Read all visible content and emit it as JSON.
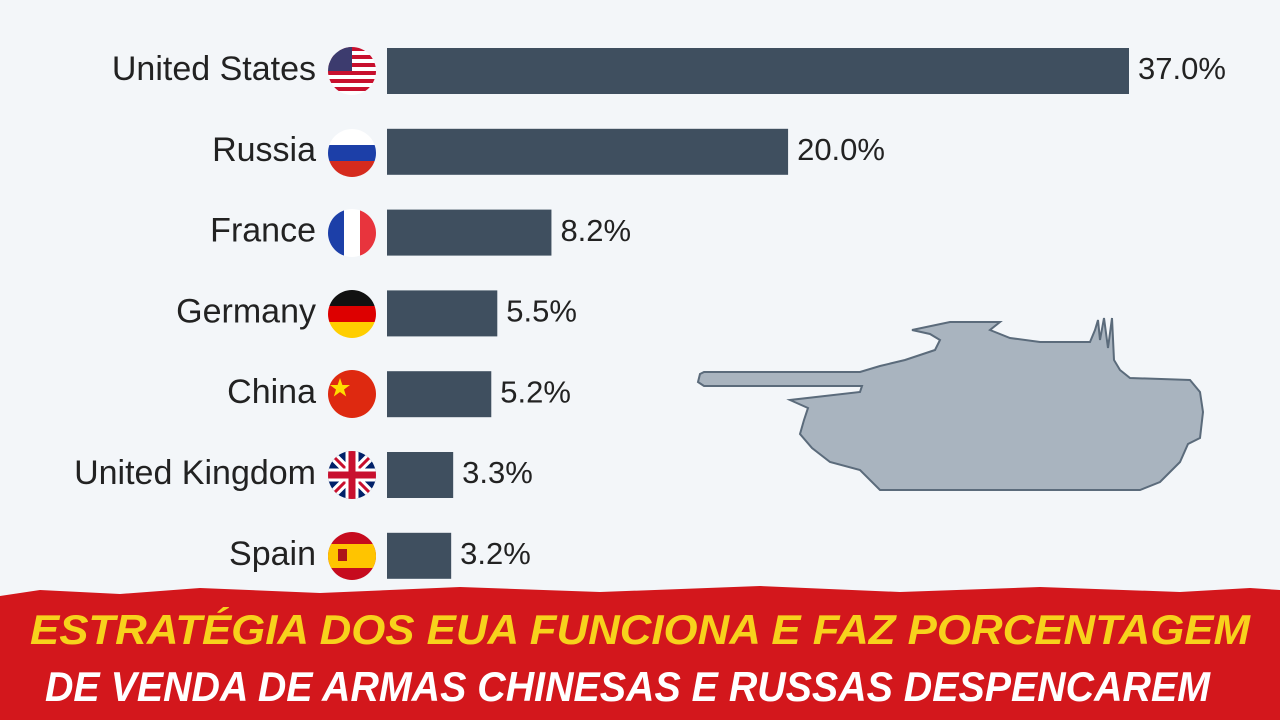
{
  "chart_data": {
    "type": "bar",
    "orientation": "horizontal",
    "categories": [
      "United States",
      "Russia",
      "France",
      "Germany",
      "China",
      "United Kingdom",
      "Spain"
    ],
    "values": [
      37.0,
      20.0,
      8.2,
      5.5,
      5.2,
      3.3,
      3.2
    ],
    "value_labels": [
      "37.0%",
      "20.0%",
      "8.2%",
      "5.5%",
      "5.2%",
      "3.3%",
      "3.2%"
    ],
    "color": "#3f4f5f",
    "annotations": [
      "ESTRATÉGIA DOS EUA FUNCIONA E FAZ PORCENTAGEM",
      "DE VENDA DE ARMAS CHINESAS E RUSSAS DESPENCAREM"
    ]
  }
}
